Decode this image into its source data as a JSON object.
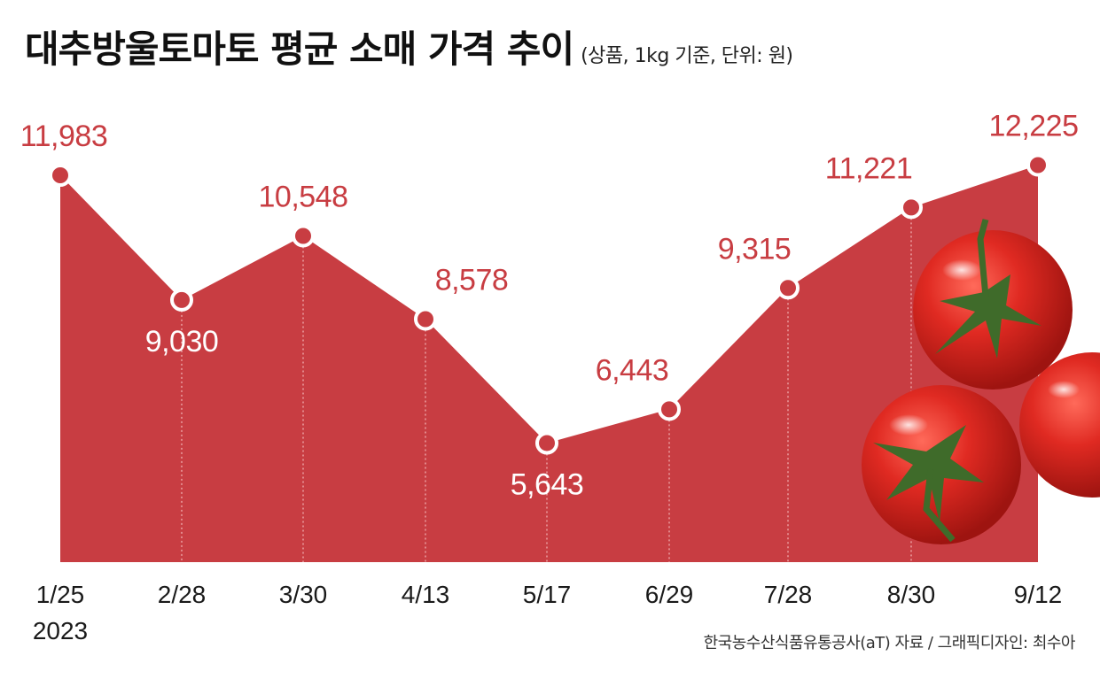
{
  "title": "대추방울토마토 평균 소매 가격 추이",
  "subtitle": "(상품, 1kg 기준, 단위: 원)",
  "source": "한국농수산식품유통공사(aT) 자료 / 그래픽디자인: 최수아",
  "colors": {
    "area": "#c83d42",
    "label_red": "#c83d42",
    "label_white": "#ffffff"
  },
  "chart_data": {
    "type": "area",
    "categories": [
      "1/25",
      "2/28",
      "3/30",
      "4/13",
      "5/17",
      "6/29",
      "7/28",
      "8/30",
      "9/12"
    ],
    "year_label": "2023",
    "values": [
      11983,
      9030,
      10548,
      8578,
      5643,
      6443,
      9315,
      11221,
      12225
    ],
    "value_labels": [
      "11,983",
      "9,030",
      "10,548",
      "8,578",
      "5,643",
      "6,443",
      "9,315",
      "11,221",
      "12,225"
    ],
    "grid": false,
    "legend": "none"
  }
}
